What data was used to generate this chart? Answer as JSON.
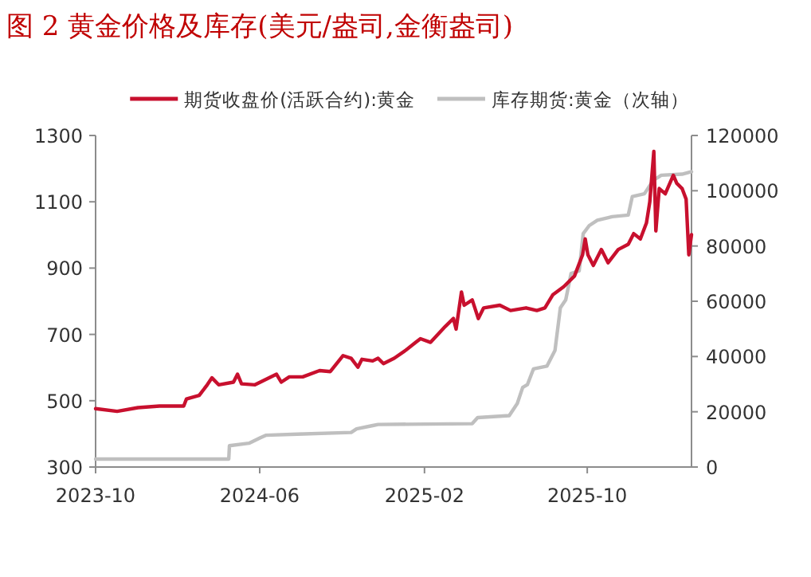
{
  "chart_data": {
    "type": "line",
    "title": "图 2 黄金价格及库存(美元/盎司,金衡盎司)",
    "legend": "top",
    "xlim": [
      "2023-10-01",
      "2026-03-05"
    ],
    "xticks": [
      "2023-10",
      "2024-06",
      "2025-02",
      "2025-10"
    ],
    "ylim": [
      300,
      1300
    ],
    "yticks": [
      300,
      500,
      700,
      900,
      1100,
      1300
    ],
    "y2lim": [
      0,
      120000
    ],
    "y2ticks": [
      0,
      20000,
      40000,
      60000,
      80000,
      100000,
      120000
    ],
    "series": [
      {
        "name": "期货收盘价(活跃合约):黄金",
        "color": "#c8102e",
        "x": [
          "2023-10-01",
          "2023-11-02",
          "2023-12-03",
          "2024-01-04",
          "2024-02-09",
          "2024-02-13",
          "2024-03-03",
          "2024-03-15",
          "2024-03-22",
          "2024-04-01",
          "2024-04-23",
          "2024-04-29",
          "2024-05-05",
          "2024-05-25",
          "2024-06-26",
          "2024-07-03",
          "2024-07-15",
          "2024-08-04",
          "2024-08-29",
          "2024-09-14",
          "2024-10-03",
          "2024-10-15",
          "2024-10-25",
          "2024-10-31",
          "2024-11-16",
          "2024-11-24",
          "2024-12-02",
          "2024-12-18",
          "2025-01-04",
          "2025-01-19",
          "2025-01-26",
          "2025-02-10",
          "2025-03-04",
          "2025-03-16",
          "2025-03-20",
          "2025-03-28",
          "2025-04-01",
          "2025-04-13",
          "2025-04-22",
          "2025-04-30",
          "2025-05-24",
          "2025-06-09",
          "2025-07-02",
          "2025-07-18",
          "2025-07-30",
          "2025-08-11",
          "2025-08-27",
          "2025-09-12",
          "2025-09-24",
          "2025-09-28",
          "2025-10-02",
          "2025-10-10",
          "2025-10-22",
          "2025-11-01",
          "2025-11-16",
          "2025-12-01",
          "2025-12-09",
          "2025-12-19",
          "2025-12-28",
          "2026-01-02",
          "2026-01-08",
          "2026-01-11",
          "2026-01-16",
          "2026-01-25",
          "2026-02-06",
          "2026-02-11",
          "2026-02-19",
          "2026-02-25",
          "2026-03-01",
          "2026-03-05"
        ],
        "values": [
          476,
          468,
          479,
          484,
          484,
          505,
          516,
          548,
          569,
          548,
          556,
          580,
          551,
          548,
          580,
          556,
          572,
          572,
          591,
          588,
          636,
          628,
          601,
          625,
          620,
          628,
          612,
          628,
          652,
          676,
          687,
          676,
          724,
          748,
          716,
          828,
          788,
          804,
          748,
          780,
          788,
          772,
          780,
          772,
          780,
          820,
          844,
          876,
          940,
          988,
          940,
          908,
          956,
          916,
          956,
          972,
          1004,
          988,
          1036,
          1100,
          1252,
          1012,
          1140,
          1124,
          1180,
          1156,
          1140,
          1108,
          940,
          1001
        ]
      },
      {
        "name": "库存期货:黄金（次轴）",
        "color": "#bfbfbf",
        "axis": "y2",
        "x": [
          "2023-10-01",
          "2024-04-16",
          "2024-04-17",
          "2024-05-16",
          "2024-06-02",
          "2024-06-10",
          "2024-07-27",
          "2024-10-15",
          "2024-10-23",
          "2024-11-16",
          "2024-11-24",
          "2025-04-13",
          "2025-04-21",
          "2025-06-07",
          "2025-06-19",
          "2025-06-27",
          "2025-07-04",
          "2025-07-13",
          "2025-08-02",
          "2025-08-14",
          "2025-08-22",
          "2025-08-30",
          "2025-09-07",
          "2025-09-19",
          "2025-09-25",
          "2025-10-04",
          "2025-10-16",
          "2025-11-07",
          "2025-12-01",
          "2025-12-07",
          "2025-12-25",
          "2026-01-07",
          "2026-01-19",
          "2026-02-19",
          "2026-03-05"
        ],
        "values": [
          2900,
          2900,
          7700,
          8600,
          10600,
          11500,
          11900,
          12500,
          13800,
          15000,
          15400,
          15700,
          17900,
          18600,
          23000,
          28800,
          29800,
          35500,
          36500,
          42200,
          57600,
          60500,
          70100,
          71000,
          84500,
          87400,
          89300,
          90600,
          91200,
          97900,
          98900,
          103700,
          105600,
          106000,
          106900
        ]
      }
    ]
  }
}
